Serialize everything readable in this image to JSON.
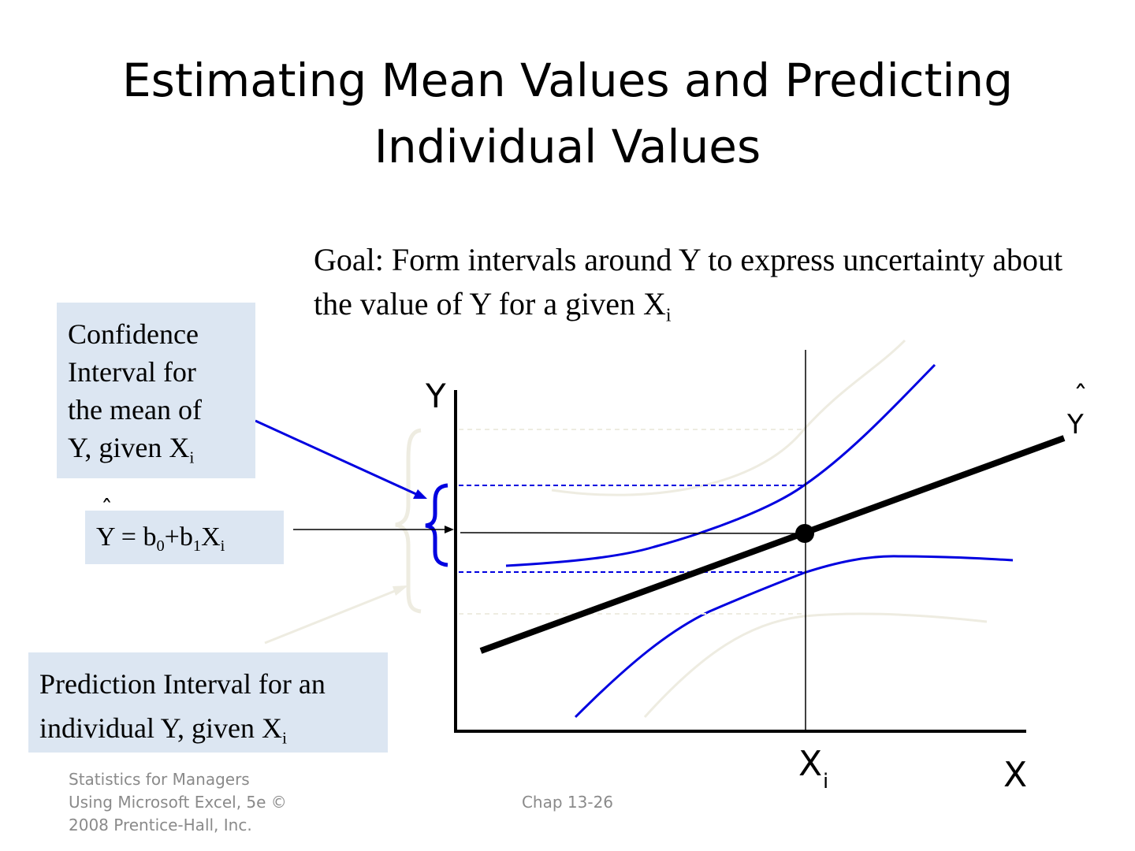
{
  "slide": {
    "title": "Estimating Mean Values and Predicting Individual Values",
    "goal": {
      "text": "Goal:  Form intervals around Y to express uncertainty about the value of Y for a given X",
      "subscript": "i"
    }
  },
  "callouts": {
    "confidence": {
      "line1": "Confidence",
      "line2": "Interval for",
      "line3": "the mean of",
      "line4": "Y, given X",
      "sub": "i"
    },
    "equation": {
      "y": "Y = b",
      "sub0": "0",
      "plus": "+b",
      "sub1": "1",
      "x": "X",
      "subi": "i"
    },
    "prediction": {
      "line1": "Prediction Interval for an",
      "line2": "individual Y, given X",
      "sub": "i"
    }
  },
  "diagram": {
    "y_axis_label": "Y",
    "x_axis_label": "X",
    "xi_label": "X",
    "xi_sub": "i",
    "yhat_label": "Y",
    "hat_mark": "ˆ",
    "colors": {
      "regression_line": "#000000",
      "confidence_band": "#0000e0",
      "prediction_band": "#eeece1",
      "callout_bg": "#dce6f2"
    }
  },
  "footer": {
    "source_line1": "Statistics for Managers",
    "source_line2": "Using Microsoft Excel, 5e ©",
    "source_line3": "2008 Prentice-Hall, Inc.",
    "page": "Chap 13-26"
  }
}
